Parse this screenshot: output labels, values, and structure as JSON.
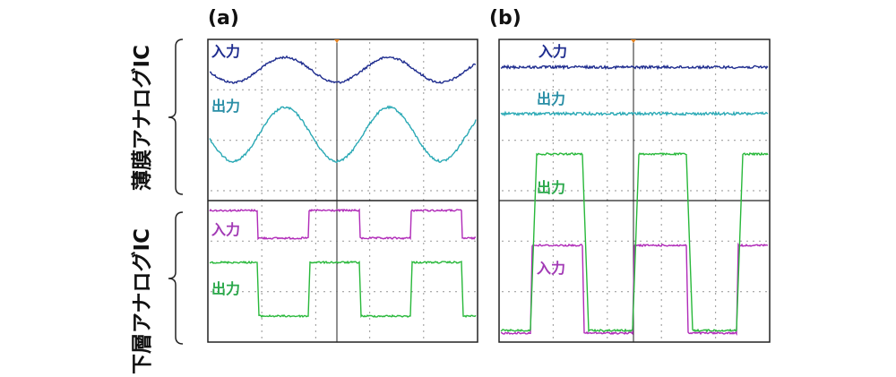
{
  "panels": {
    "a": {
      "label": "(a)"
    },
    "b": {
      "label": "(b)"
    }
  },
  "side_labels": {
    "top": "薄膜アナログIC",
    "bottom": "下層アナログIC"
  },
  "trace_labels": {
    "a_top_input": "入力",
    "a_top_output": "出力",
    "a_bottom_input": "入力",
    "a_bottom_output": "出力",
    "b_input_top": "入力",
    "b_output_top": "出力",
    "b_output_square": "出力",
    "b_input_square": "入力"
  },
  "colors": {
    "input_dark_blue": "#1f2d8f",
    "output_cyan": "#2aa9b5",
    "input_magenta": "#b02ab8",
    "output_green": "#28b83a",
    "label_blue": "#1f2d8f",
    "label_cyan": "#2a8ea6",
    "label_magenta": "#a23ab5",
    "label_green": "#2aa84a"
  }
}
